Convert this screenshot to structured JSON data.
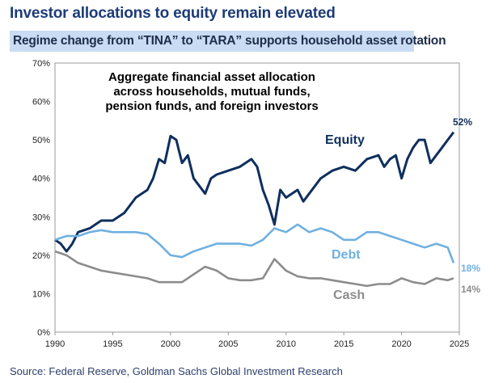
{
  "title": "Investor allocations to equity remain elevated",
  "subtitle": "Regime change from “TINA” to “TARA” supports household asset rotation",
  "source": "Source: Federal Reserve, Goldman Sachs Global Investment Research",
  "chart_data": {
    "type": "line",
    "annotation": [
      "Aggregate financial asset allocation",
      "across households, mutual funds,",
      "pension funds, and foreign investors"
    ],
    "xlim": [
      1990,
      2025
    ],
    "ylim": [
      0,
      70
    ],
    "x_ticks": [
      "1990",
      "1995",
      "2000",
      "2005",
      "2010",
      "2015",
      "2020",
      "2025"
    ],
    "y_ticks": [
      "0%",
      "10%",
      "20%",
      "30%",
      "40%",
      "50%",
      "60%",
      "70%"
    ],
    "colors": {
      "Equity": "#0f2f5e",
      "Debt": "#6fb0e0",
      "Cash": "#8c8c8c"
    },
    "series": [
      {
        "name": "Equity",
        "end_label": "52%",
        "points": [
          [
            1990,
            24
          ],
          [
            1990.5,
            23
          ],
          [
            1991,
            21
          ],
          [
            1991.5,
            23
          ],
          [
            1992,
            26
          ],
          [
            1993,
            27
          ],
          [
            1994,
            29
          ],
          [
            1995,
            29
          ],
          [
            1996,
            31
          ],
          [
            1997,
            35
          ],
          [
            1998,
            37
          ],
          [
            1998.5,
            40
          ],
          [
            1999,
            45
          ],
          [
            1999.5,
            44
          ],
          [
            2000,
            51
          ],
          [
            2000.5,
            50
          ],
          [
            2001,
            44
          ],
          [
            2001.5,
            46
          ],
          [
            2002,
            40
          ],
          [
            2003,
            36
          ],
          [
            2003.5,
            40
          ],
          [
            2004,
            41
          ],
          [
            2005,
            42
          ],
          [
            2006,
            43
          ],
          [
            2007,
            45
          ],
          [
            2007.5,
            43
          ],
          [
            2008,
            37
          ],
          [
            2008.5,
            33
          ],
          [
            2009,
            28
          ],
          [
            2009.5,
            37
          ],
          [
            2010,
            35
          ],
          [
            2011,
            37
          ],
          [
            2011.5,
            34
          ],
          [
            2012,
            36
          ],
          [
            2013,
            40
          ],
          [
            2014,
            42
          ],
          [
            2015,
            43
          ],
          [
            2016,
            42
          ],
          [
            2017,
            45
          ],
          [
            2018,
            46
          ],
          [
            2018.5,
            43
          ],
          [
            2019,
            45
          ],
          [
            2019.5,
            46
          ],
          [
            2020,
            40
          ],
          [
            2020.5,
            45
          ],
          [
            2021,
            48
          ],
          [
            2021.5,
            50
          ],
          [
            2022,
            50
          ],
          [
            2022.5,
            44
          ],
          [
            2023,
            46
          ],
          [
            2023.5,
            48
          ],
          [
            2024,
            50
          ],
          [
            2024.5,
            52
          ]
        ]
      },
      {
        "name": "Debt",
        "end_label": "18%",
        "points": [
          [
            1990,
            24
          ],
          [
            1991,
            25
          ],
          [
            1992,
            25
          ],
          [
            1993,
            26
          ],
          [
            1994,
            26.5
          ],
          [
            1995,
            26
          ],
          [
            1996,
            26
          ],
          [
            1997,
            26
          ],
          [
            1998,
            25.5
          ],
          [
            1999,
            23
          ],
          [
            2000,
            20
          ],
          [
            2001,
            19.5
          ],
          [
            2002,
            21
          ],
          [
            2003,
            22
          ],
          [
            2004,
            23
          ],
          [
            2005,
            23
          ],
          [
            2006,
            23
          ],
          [
            2007,
            22.5
          ],
          [
            2008,
            24
          ],
          [
            2009,
            27
          ],
          [
            2010,
            26
          ],
          [
            2011,
            28
          ],
          [
            2012,
            26
          ],
          [
            2013,
            27
          ],
          [
            2014,
            26
          ],
          [
            2015,
            24
          ],
          [
            2016,
            24
          ],
          [
            2017,
            26
          ],
          [
            2018,
            26
          ],
          [
            2019,
            25
          ],
          [
            2020,
            24
          ],
          [
            2021,
            23
          ],
          [
            2022,
            22
          ],
          [
            2023,
            23
          ],
          [
            2024,
            22
          ],
          [
            2024.5,
            18
          ]
        ]
      },
      {
        "name": "Cash",
        "end_label": "14%",
        "points": [
          [
            1990,
            21
          ],
          [
            1991,
            20
          ],
          [
            1992,
            18
          ],
          [
            1993,
            17
          ],
          [
            1994,
            16
          ],
          [
            1995,
            15.5
          ],
          [
            1996,
            15
          ],
          [
            1997,
            14.5
          ],
          [
            1998,
            14
          ],
          [
            1999,
            13
          ],
          [
            2000,
            13
          ],
          [
            2001,
            13
          ],
          [
            2002,
            15
          ],
          [
            2003,
            17
          ],
          [
            2004,
            16
          ],
          [
            2005,
            14
          ],
          [
            2006,
            13.5
          ],
          [
            2007,
            13.5
          ],
          [
            2008,
            14
          ],
          [
            2009,
            19
          ],
          [
            2010,
            16
          ],
          [
            2011,
            14.5
          ],
          [
            2012,
            14
          ],
          [
            2013,
            14
          ],
          [
            2014,
            13.5
          ],
          [
            2015,
            13
          ],
          [
            2016,
            12.5
          ],
          [
            2017,
            12
          ],
          [
            2018,
            12.5
          ],
          [
            2019,
            12.5
          ],
          [
            2020,
            14
          ],
          [
            2021,
            13
          ],
          [
            2022,
            12.5
          ],
          [
            2023,
            14
          ],
          [
            2024,
            13.5
          ],
          [
            2024.5,
            14
          ]
        ]
      }
    ]
  }
}
